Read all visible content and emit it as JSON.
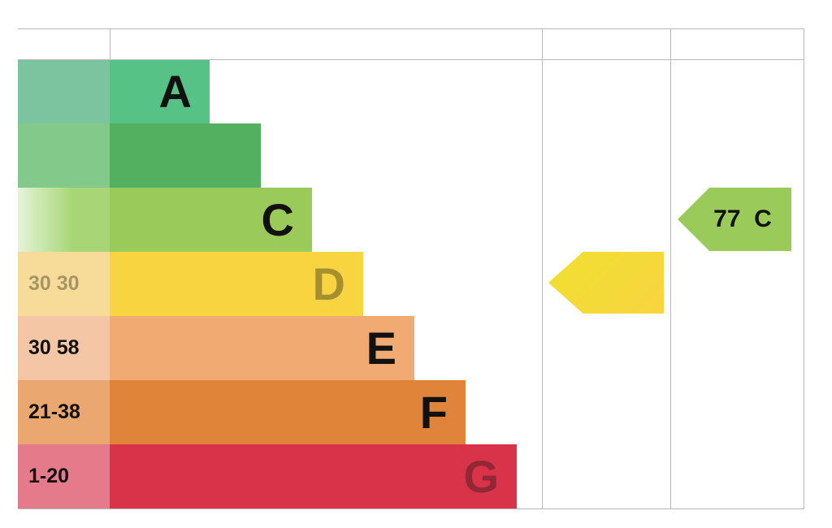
{
  "chart_data": {
    "type": "bar",
    "title": "",
    "columns": [],
    "bands": [
      {
        "letter": "A",
        "score_label": "",
        "bar_color": "#57c285",
        "score_color": "#7cc4a0",
        "letter_visible": true
      },
      {
        "letter": "",
        "score_label": "",
        "bar_color": "#52b060",
        "score_color": "#82c98a",
        "letter_visible": true
      },
      {
        "letter": "C",
        "score_label": "",
        "bar_color": "#9acb5a",
        "score_color": "#a8d676",
        "letter_visible": true
      },
      {
        "letter": "D",
        "score_label": "30 30",
        "bar_color": "#f8d440",
        "score_color": "#f6dc98",
        "letter_visible": false,
        "score_faded": true
      },
      {
        "letter": "E",
        "score_label": "30 58",
        "bar_color": "#f0aa72",
        "score_color": "#f5c6a6",
        "letter_visible": true
      },
      {
        "letter": "F",
        "score_label": "21-38",
        "bar_color": "#e0843a",
        "score_color": "#eaa870",
        "letter_visible": true
      },
      {
        "letter": "G",
        "score_label": "1-20",
        "bar_color": "#d9334a",
        "score_color": "#e57a8a",
        "letter_visible": false
      }
    ],
    "current": {
      "band": "D",
      "label": "",
      "color": "#f8d440"
    },
    "potential": {
      "band": "C",
      "label": "77  C",
      "value": 77,
      "color": "#9acb5a"
    }
  }
}
